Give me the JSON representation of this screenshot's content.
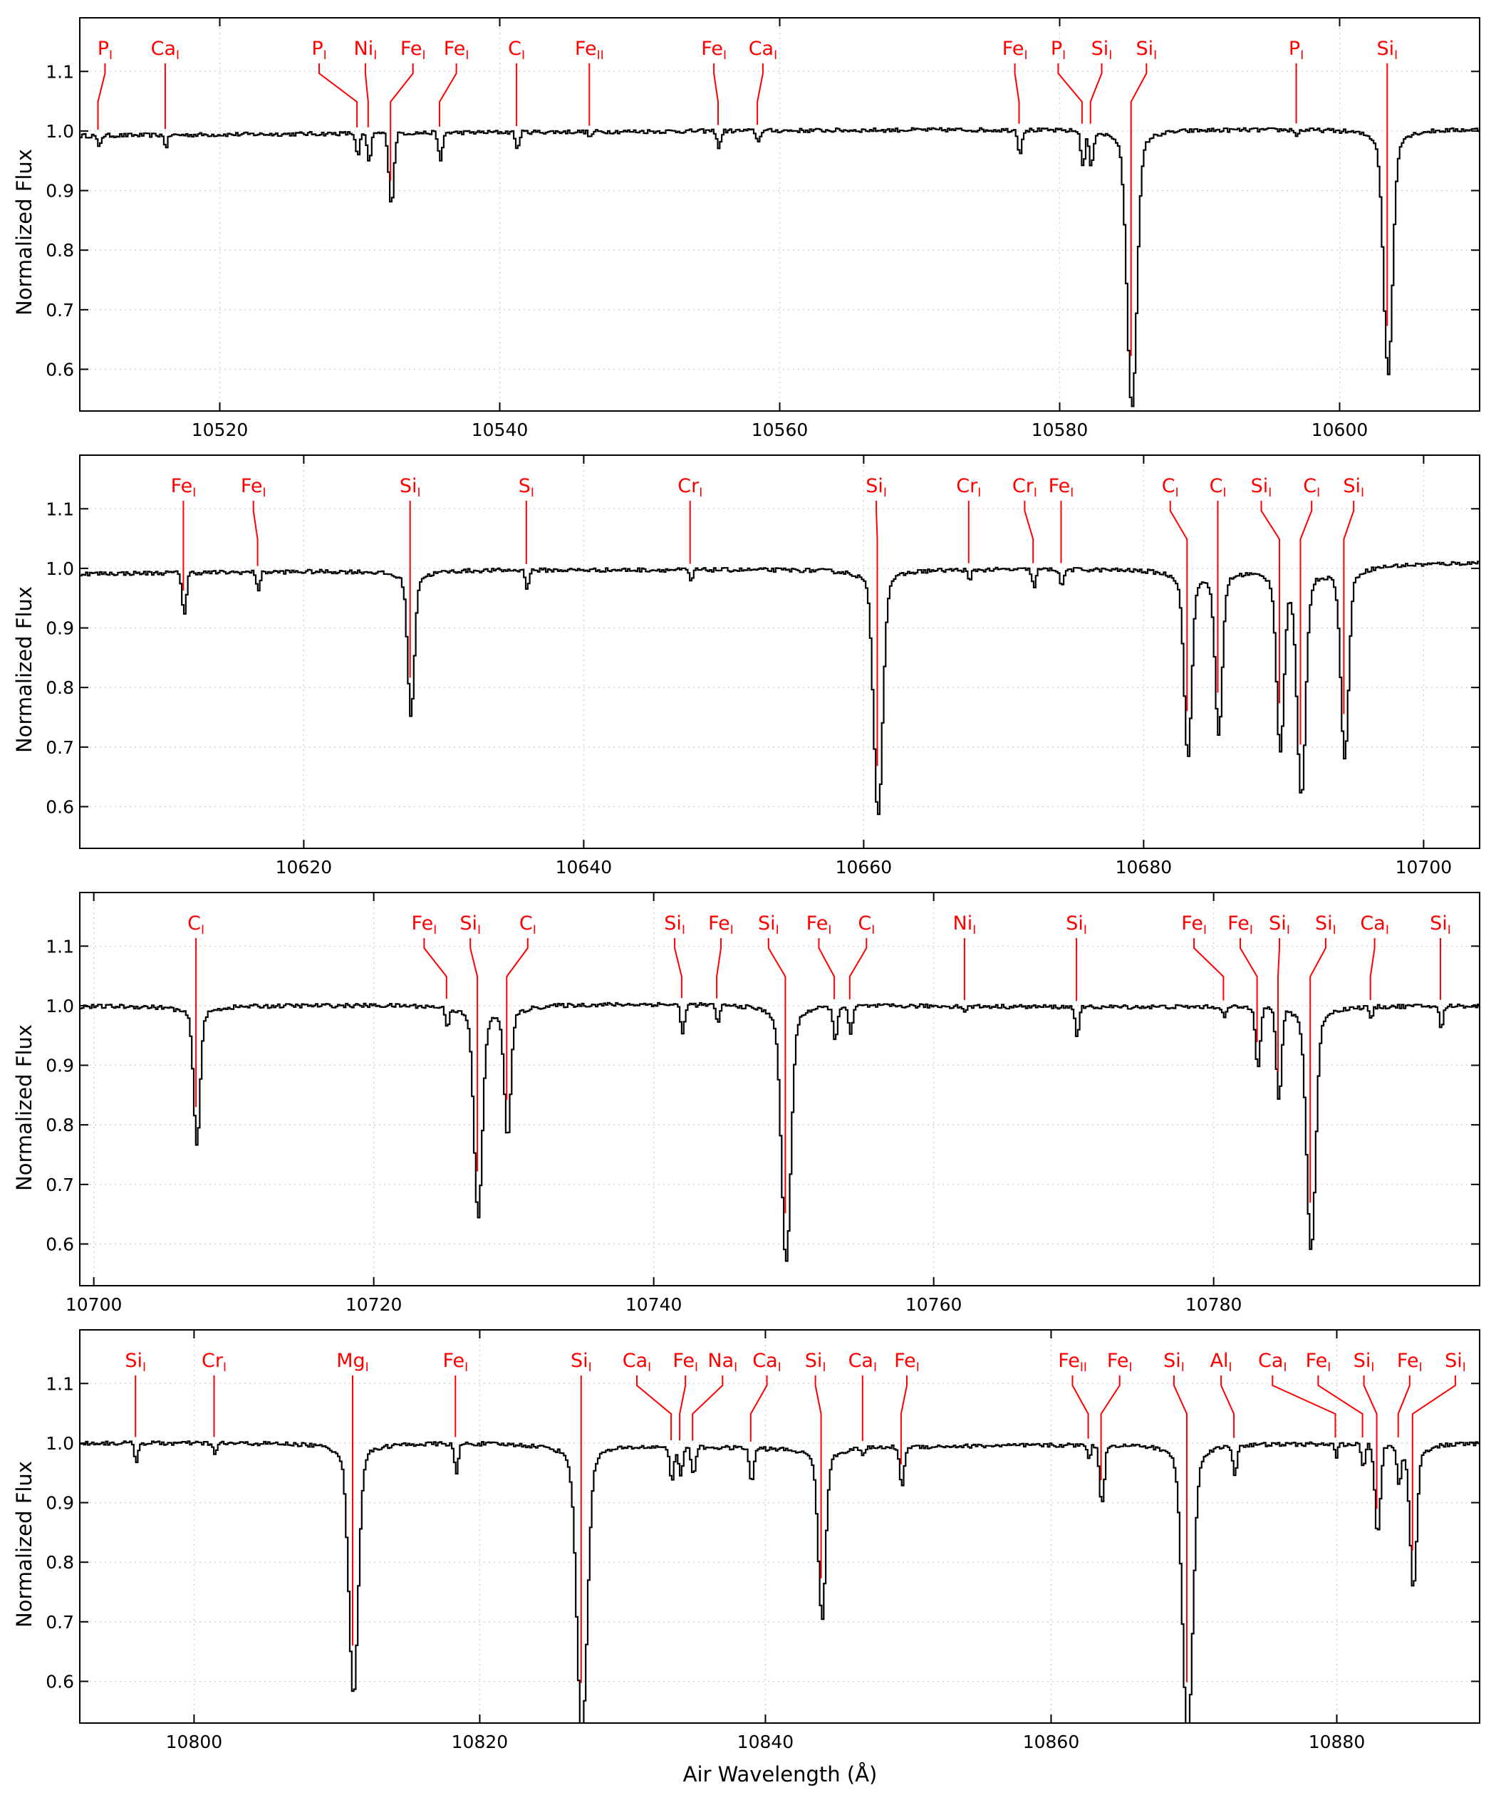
{
  "figure": {
    "xlabel": "Air Wavelength (Å)",
    "ylabel": "Normalized Flux",
    "line_color": "#000000",
    "label_color": "#ff0000",
    "grid_color": "#cfcfcf"
  },
  "chart_data": [
    {
      "type": "line",
      "xlim": [
        10510,
        10610
      ],
      "ylim": [
        0.53,
        1.19
      ],
      "xticks": [
        10520,
        10540,
        10560,
        10580,
        10600
      ],
      "yticks": [
        0.6,
        0.7,
        0.8,
        0.9,
        1.0,
        1.1
      ],
      "ytick_labels": [
        "0.6",
        "0.7",
        "0.8",
        "0.9",
        "1.0",
        "1.1"
      ],
      "grid": true,
      "continuum": [
        [
          10510,
          0.992
        ],
        [
          10540,
          0.998
        ],
        [
          10570,
          1.002
        ],
        [
          10610,
          1.003
        ]
      ],
      "lines": [
        {
          "el": "P",
          "ion": "I",
          "wave": 10511.3,
          "label_x": 10511.8,
          "depth": 0.02
        },
        {
          "el": "Ca",
          "ion": "I",
          "wave": 10516.1,
          "label_x": 10516.1,
          "depth": 0.02
        },
        {
          "el": "P",
          "ion": "I",
          "wave": 10529.8,
          "label_x": 10527.1,
          "depth": 0.04
        },
        {
          "el": "Ni",
          "ion": "I",
          "wave": 10530.6,
          "label_x": 10530.4,
          "depth": 0.05
        },
        {
          "el": "Fe",
          "ion": "I",
          "wave": 10532.2,
          "label_x": 10533.8,
          "depth": 0.12
        },
        {
          "el": "Fe",
          "ion": "I",
          "wave": 10535.7,
          "label_x": 10536.9,
          "depth": 0.05
        },
        {
          "el": "C",
          "ion": "I",
          "wave": 10541.2,
          "label_x": 10541.2,
          "depth": 0.03
        },
        {
          "el": "Fe",
          "ion": "II",
          "wave": 10546.4,
          "label_x": 10546.4,
          "depth": 0.01
        },
        {
          "el": "Fe",
          "ion": "I",
          "wave": 10555.6,
          "label_x": 10555.3,
          "depth": 0.03
        },
        {
          "el": "Ca",
          "ion": "I",
          "wave": 10558.4,
          "label_x": 10558.8,
          "depth": 0.02
        },
        {
          "el": "Fe",
          "ion": "I",
          "wave": 10577.1,
          "label_x": 10576.8,
          "depth": 0.04
        },
        {
          "el": "P",
          "ion": "I",
          "wave": 10581.6,
          "label_x": 10579.9,
          "depth": 0.06
        },
        {
          "el": "Si",
          "ion": "I",
          "wave": 10582.2,
          "label_x": 10583.0,
          "depth": 0.06
        },
        {
          "el": "Si",
          "ion": "I",
          "wave": 10585.1,
          "label_x": 10586.2,
          "depth": 0.42
        },
        {
          "el": "P",
          "ion": "I",
          "wave": 10596.9,
          "label_x": 10596.9,
          "depth": 0.01
        },
        {
          "el": "Si",
          "ion": "I",
          "wave": 10603.4,
          "label_x": 10603.4,
          "depth": 0.37
        }
      ]
    },
    {
      "type": "line",
      "xlim": [
        10604,
        10704
      ],
      "ylim": [
        0.53,
        1.19
      ],
      "xticks": [
        10620,
        10640,
        10660,
        10680,
        10700
      ],
      "yticks": [
        0.6,
        0.7,
        0.8,
        0.9,
        1.0,
        1.1
      ],
      "ytick_labels": [
        "0.6",
        "0.7",
        "0.8",
        "0.9",
        "1.0",
        "1.1"
      ],
      "grid": true,
      "continuum": [
        [
          10604,
          0.991
        ],
        [
          10630,
          0.997
        ],
        [
          10680,
          0.999
        ],
        [
          10704,
          1.01
        ]
      ],
      "lines": [
        {
          "el": "Fe",
          "ion": "I",
          "wave": 10611.4,
          "label_x": 10611.4,
          "depth": 0.07
        },
        {
          "el": "Fe",
          "ion": "I",
          "wave": 10616.7,
          "label_x": 10616.4,
          "depth": 0.03
        },
        {
          "el": "Si",
          "ion": "I",
          "wave": 10627.6,
          "label_x": 10627.6,
          "depth": 0.22
        },
        {
          "el": "S",
          "ion": "I",
          "wave": 10635.9,
          "label_x": 10635.9,
          "depth": 0.03
        },
        {
          "el": "Cr",
          "ion": "I",
          "wave": 10647.6,
          "label_x": 10647.6,
          "depth": 0.02
        },
        {
          "el": "Si",
          "ion": "I",
          "wave": 10660.97,
          "label_x": 10660.9,
          "depth": 0.37
        },
        {
          "el": "Cr",
          "ion": "I",
          "wave": 10667.5,
          "label_x": 10667.5,
          "depth": 0.02
        },
        {
          "el": "Cr",
          "ion": "I",
          "wave": 10672.1,
          "label_x": 10671.5,
          "depth": 0.03
        },
        {
          "el": "Fe",
          "ion": "I",
          "wave": 10674.1,
          "label_x": 10674.1,
          "depth": 0.03
        },
        {
          "el": "C",
          "ion": "I",
          "wave": 10683.1,
          "label_x": 10681.9,
          "depth": 0.28
        },
        {
          "el": "C",
          "ion": "I",
          "wave": 10685.3,
          "label_x": 10685.3,
          "depth": 0.25
        },
        {
          "el": "Si",
          "ion": "I",
          "wave": 10689.7,
          "label_x": 10688.4,
          "depth": 0.27
        },
        {
          "el": "C",
          "ion": "I",
          "wave": 10691.2,
          "label_x": 10692.0,
          "depth": 0.34
        },
        {
          "el": "Si",
          "ion": "I",
          "wave": 10694.3,
          "label_x": 10695.0,
          "depth": 0.29
        }
      ]
    },
    {
      "type": "line",
      "xlim": [
        10699,
        10799
      ],
      "ylim": [
        0.53,
        1.19
      ],
      "xticks": [
        10700,
        10720,
        10740,
        10760,
        10780
      ],
      "yticks": [
        0.6,
        0.7,
        0.8,
        0.9,
        1.0,
        1.1
      ],
      "ytick_labels": [
        "0.6",
        "0.7",
        "0.8",
        "0.9",
        "1.0",
        "1.1"
      ],
      "grid": true,
      "continuum": [
        [
          10699,
          0.999
        ],
        [
          10740,
          1.003
        ],
        [
          10770,
          0.998
        ],
        [
          10799,
          1.0
        ]
      ],
      "lines": [
        {
          "el": "C",
          "ion": "I",
          "wave": 10707.3,
          "label_x": 10707.3,
          "depth": 0.21
        },
        {
          "el": "Fe",
          "ion": "I",
          "wave": 10725.2,
          "label_x": 10723.6,
          "depth": 0.03
        },
        {
          "el": "Si",
          "ion": "I",
          "wave": 10727.4,
          "label_x": 10726.9,
          "depth": 0.32
        },
        {
          "el": "C",
          "ion": "I",
          "wave": 10729.5,
          "label_x": 10731.0,
          "depth": 0.2
        },
        {
          "el": "Si",
          "ion": "I",
          "wave": 10742.0,
          "label_x": 10741.5,
          "depth": 0.05
        },
        {
          "el": "Fe",
          "ion": "I",
          "wave": 10744.5,
          "label_x": 10744.8,
          "depth": 0.03
        },
        {
          "el": "Si",
          "ion": "I",
          "wave": 10749.4,
          "label_x": 10748.2,
          "depth": 0.39
        },
        {
          "el": "Fe",
          "ion": "I",
          "wave": 10752.9,
          "label_x": 10751.8,
          "depth": 0.06
        },
        {
          "el": "C",
          "ion": "I",
          "wave": 10754.0,
          "label_x": 10755.2,
          "depth": 0.05
        },
        {
          "el": "Ni",
          "ion": "I",
          "wave": 10762.2,
          "label_x": 10762.2,
          "depth": 0.01
        },
        {
          "el": "Si",
          "ion": "I",
          "wave": 10770.2,
          "label_x": 10770.2,
          "depth": 0.05
        },
        {
          "el": "Fe",
          "ion": "I",
          "wave": 10780.7,
          "label_x": 10778.6,
          "depth": 0.02
        },
        {
          "el": "Fe",
          "ion": "I",
          "wave": 10783.1,
          "label_x": 10781.9,
          "depth": 0.1
        },
        {
          "el": "Si",
          "ion": "I",
          "wave": 10784.6,
          "label_x": 10784.7,
          "depth": 0.15
        },
        {
          "el": "Si",
          "ion": "I",
          "wave": 10786.9,
          "label_x": 10788.0,
          "depth": 0.37
        },
        {
          "el": "Ca",
          "ion": "I",
          "wave": 10791.2,
          "label_x": 10791.5,
          "depth": 0.02
        },
        {
          "el": "Si",
          "ion": "I",
          "wave": 10796.2,
          "label_x": 10796.2,
          "depth": 0.04
        }
      ]
    },
    {
      "type": "line",
      "xlim": [
        10792,
        10890
      ],
      "ylim": [
        0.53,
        1.19
      ],
      "xticks": [
        10800,
        10820,
        10840,
        10860,
        10880
      ],
      "yticks": [
        0.6,
        0.7,
        0.8,
        0.9,
        1.0,
        1.1
      ],
      "ytick_labels": [
        "0.6",
        "0.7",
        "0.8",
        "0.9",
        "1.0",
        "1.1"
      ],
      "grid": true,
      "continuum": [
        [
          10792,
          1.0
        ],
        [
          10820,
          1.0
        ],
        [
          10840,
          0.992
        ],
        [
          10865,
          0.998
        ],
        [
          10890,
          1.0
        ]
      ],
      "lines": [
        {
          "el": "Si",
          "ion": "I",
          "wave": 10795.9,
          "label_x": 10795.9,
          "depth": 0.03
        },
        {
          "el": "Cr",
          "ion": "I",
          "wave": 10801.4,
          "label_x": 10801.4,
          "depth": 0.02
        },
        {
          "el": "Mg",
          "ion": "I",
          "wave": 10811.1,
          "label_x": 10811.1,
          "depth": 0.38
        },
        {
          "el": "Fe",
          "ion": "I",
          "wave": 10818.3,
          "label_x": 10818.3,
          "depth": 0.05
        },
        {
          "el": "Si",
          "ion": "I",
          "wave": 10827.1,
          "label_x": 10827.1,
          "depth": 0.44
        },
        {
          "el": "Ca",
          "ion": "I",
          "wave": 10833.4,
          "label_x": 10831.0,
          "depth": 0.06
        },
        {
          "el": "Fe",
          "ion": "I",
          "wave": 10834.0,
          "label_x": 10834.4,
          "depth": 0.05
        },
        {
          "el": "Na",
          "ion": "I",
          "wave": 10834.9,
          "label_x": 10837.0,
          "depth": 0.05
        },
        {
          "el": "Ca",
          "ion": "I",
          "wave": 10838.97,
          "label_x": 10840.1,
          "depth": 0.06
        },
        {
          "el": "Si",
          "ion": "I",
          "wave": 10843.9,
          "label_x": 10843.5,
          "depth": 0.26
        },
        {
          "el": "Ca",
          "ion": "I",
          "wave": 10846.8,
          "label_x": 10846.8,
          "depth": 0.01
        },
        {
          "el": "Fe",
          "ion": "I",
          "wave": 10849.5,
          "label_x": 10849.9,
          "depth": 0.07
        },
        {
          "el": "Fe",
          "ion": "II",
          "wave": 10862.6,
          "label_x": 10861.5,
          "depth": 0.02
        },
        {
          "el": "Fe",
          "ion": "I",
          "wave": 10863.5,
          "label_x": 10864.8,
          "depth": 0.1
        },
        {
          "el": "Si",
          "ion": "I",
          "wave": 10869.5,
          "label_x": 10868.6,
          "depth": 0.44
        },
        {
          "el": "Al",
          "ion": "I",
          "wave": 10872.8,
          "label_x": 10871.9,
          "depth": 0.05
        },
        {
          "el": "Ca",
          "ion": "I",
          "wave": 10879.9,
          "label_x": 10875.5,
          "depth": 0.02
        },
        {
          "el": "Fe",
          "ion": "I",
          "wave": 10881.8,
          "label_x": 10878.7,
          "depth": 0.04
        },
        {
          "el": "Si",
          "ion": "I",
          "wave": 10882.8,
          "label_x": 10881.9,
          "depth": 0.15
        },
        {
          "el": "Fe",
          "ion": "I",
          "wave": 10884.3,
          "label_x": 10885.1,
          "depth": 0.06
        },
        {
          "el": "Si",
          "ion": "I",
          "wave": 10885.3,
          "label_x": 10888.3,
          "depth": 0.22
        }
      ]
    }
  ]
}
